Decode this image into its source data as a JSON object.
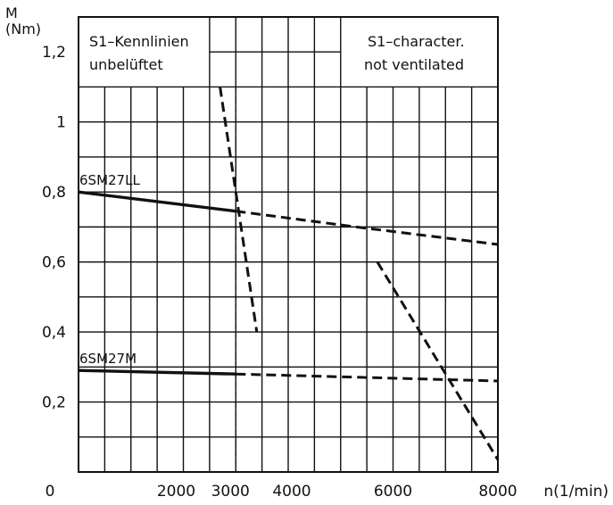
{
  "chart_data": {
    "type": "line",
    "ylabel_line1": "M",
    "ylabel_line2": "(Nm)",
    "xlabel": "n(1/min)",
    "xlim": [
      0,
      8000
    ],
    "ylim": [
      0,
      1.3
    ],
    "grid": true,
    "x_ticks": [
      {
        "value": 0,
        "label": "0"
      },
      {
        "value": 2000,
        "label": "2000"
      },
      {
        "value": 3000,
        "label": "3000"
      },
      {
        "value": 4000,
        "label": "4000"
      },
      {
        "value": 6000,
        "label": "6000"
      },
      {
        "value": 8000,
        "label": "8000"
      }
    ],
    "y_ticks": [
      {
        "value": 0.2,
        "label": "0,2"
      },
      {
        "value": 0.4,
        "label": "0,4"
      },
      {
        "value": 0.6,
        "label": "0,6"
      },
      {
        "value": 0.8,
        "label": "0,8"
      },
      {
        "value": 1.0,
        "label": "1"
      },
      {
        "value": 1.2,
        "label": "1,2"
      }
    ],
    "box_left": {
      "line1": "S1–Kennlinien",
      "line2": "unbelüftet"
    },
    "box_right": {
      "line1": "S1–character.",
      "line2": "not ventilated"
    },
    "series": [
      {
        "name": "6SM27LL",
        "solid": [
          [
            0,
            0.8
          ],
          [
            3000,
            0.745
          ]
        ],
        "dashed": [
          [
            3000,
            0.745
          ],
          [
            5300,
            0.7
          ],
          [
            8000,
            0.65
          ]
        ]
      },
      {
        "name": "6SM27M",
        "solid": [
          [
            0,
            0.29
          ],
          [
            3000,
            0.28
          ]
        ],
        "dashed": [
          [
            3000,
            0.28
          ],
          [
            8000,
            0.26
          ]
        ]
      }
    ],
    "limit_curves": [
      {
        "points": [
          [
            2700,
            1.1
          ],
          [
            3400,
            0.4
          ]
        ]
      },
      {
        "points": [
          [
            5700,
            0.6
          ],
          [
            8000,
            0.035
          ]
        ]
      }
    ],
    "reference_line": {
      "x": 3000,
      "y_top": 1.1
    }
  }
}
